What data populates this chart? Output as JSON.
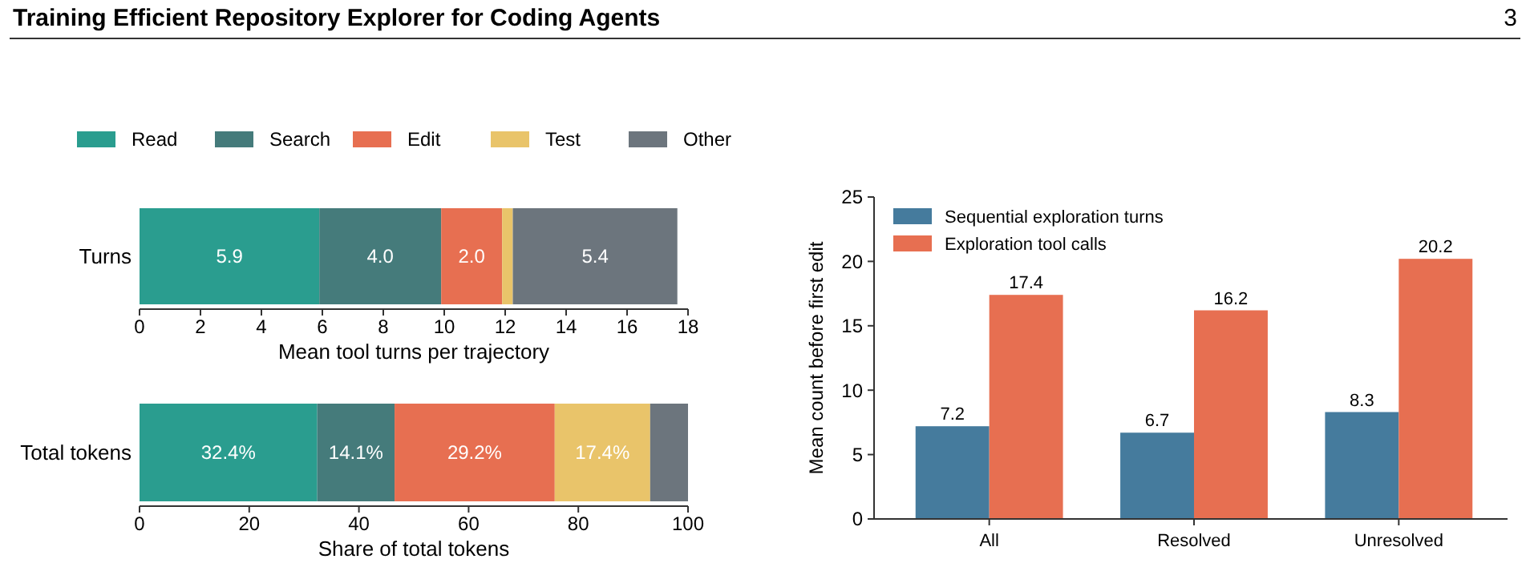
{
  "chart_data": [
    {
      "type": "bar",
      "title": "Training Efficient Repository Explorer for Coding Agents",
      "annotations": [
        "3"
      ],
      "orientation": "horizontal",
      "stacked": true,
      "categories": [
        "Turns"
      ],
      "xlabel": "Mean tool turns per trajectory",
      "xlim": [
        0,
        18
      ],
      "xticks": [
        0,
        2,
        4,
        6,
        8,
        10,
        12,
        14,
        16,
        18
      ],
      "legend": "top",
      "grid": false,
      "series": [
        {
          "name": "Read",
          "color": "#2a9d8f",
          "values": [
            5.9
          ],
          "value_labels": [
            "5.9"
          ]
        },
        {
          "name": "Search",
          "color": "#457b7b",
          "values": [
            4.0
          ],
          "value_labels": [
            "4.0"
          ]
        },
        {
          "name": "Edit",
          "color": "#e76f51",
          "values": [
            2.0
          ],
          "value_labels": [
            "2.0"
          ]
        },
        {
          "name": "Test",
          "color": "#e9c46a",
          "values": [
            0.35
          ],
          "value_labels": [
            null
          ]
        },
        {
          "name": "Other",
          "color": "#6c757d",
          "values": [
            5.4
          ],
          "value_labels": [
            "5.4"
          ]
        }
      ]
    },
    {
      "type": "bar",
      "orientation": "horizontal",
      "stacked": true,
      "categories": [
        "Total tokens"
      ],
      "xlabel": "Share of total tokens",
      "xlim": [
        0,
        100
      ],
      "xticks": [
        0,
        20,
        40,
        60,
        80,
        100
      ],
      "grid": false,
      "series": [
        {
          "color": "#2a9d8f",
          "values": [
            32.4
          ],
          "value_labels": [
            "32.4%"
          ]
        },
        {
          "color": "#457b7b",
          "values": [
            14.1
          ],
          "value_labels": [
            "14.1%"
          ]
        },
        {
          "color": "#e76f51",
          "values": [
            29.2
          ],
          "value_labels": [
            "29.2%"
          ]
        },
        {
          "color": "#e9c46a",
          "values": [
            17.4
          ],
          "value_labels": [
            "17.4%"
          ]
        },
        {
          "color": "#6c757d",
          "values": [
            6.9
          ],
          "value_labels": [
            null
          ]
        }
      ]
    },
    {
      "type": "bar",
      "categories": [
        "All",
        "Resolved",
        "Unresolved"
      ],
      "ylabel": "Mean count before first edit",
      "ylim": [
        0,
        25
      ],
      "yticks": [
        0,
        5,
        10,
        15,
        20,
        25
      ],
      "legend": "top left",
      "grid": false,
      "data_labels": true,
      "series": [
        {
          "name": "Sequential exploration turns",
          "color": "#457b9d",
          "values": [
            7.2,
            6.7,
            8.3
          ]
        },
        {
          "name": "Exploration tool calls",
          "color": "#e76f51",
          "values": [
            17.4,
            16.2,
            20.2
          ]
        }
      ]
    }
  ]
}
